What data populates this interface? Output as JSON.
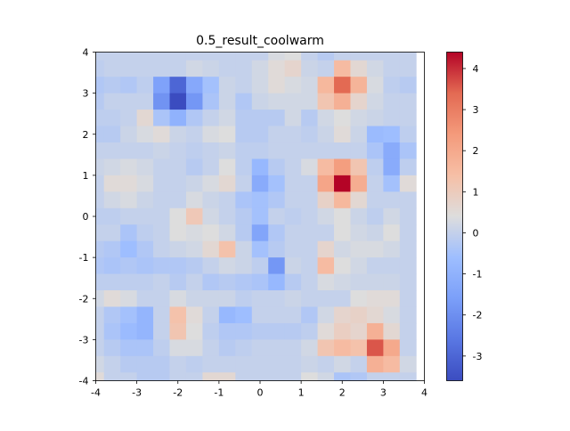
{
  "chart_data": {
    "type": "heatmap",
    "title": "0.5_result_coolwarm",
    "xlabel": "",
    "ylabel": "",
    "colormap": "coolwarm",
    "xlim": [
      -4,
      4
    ],
    "ylim": [
      -4,
      4
    ],
    "x_ticks": [
      "-4",
      "-3",
      "-2",
      "-1",
      "0",
      "1",
      "2",
      "3",
      "4"
    ],
    "y_ticks": [
      "4",
      "3",
      "2",
      "1",
      "0",
      "-1",
      "-2",
      "-3",
      "-4"
    ],
    "colorbar_range": [
      -3.6,
      4.4
    ],
    "colorbar_ticks": [
      "4",
      "3",
      "2",
      "1",
      "0",
      "-1",
      "-2",
      "-3"
    ],
    "cell_size": 0.4,
    "grid": false,
    "values": [
      [
        0,
        0,
        0,
        0,
        0,
        0,
        0,
        0,
        0,
        0,
        0,
        0.3,
        0.4,
        0,
        -0.2,
        0,
        0,
        0,
        0,
        0
      ],
      [
        -0.1,
        0,
        0,
        0,
        0,
        0,
        0.2,
        0.1,
        0,
        0,
        0.2,
        0.5,
        0.7,
        0.1,
        0,
        1.5,
        0.6,
        0.2,
        0,
        0
      ],
      [
        -0.3,
        -0.2,
        -0.3,
        -0.1,
        -1.5,
        -3.0,
        -1.3,
        -0.5,
        0.1,
        0,
        0.2,
        0.5,
        0.3,
        0.2,
        1.6,
        3.4,
        1.7,
        0.3,
        -0.1,
        -0.2
      ],
      [
        -0.2,
        0,
        0,
        0,
        -1.9,
        -3.6,
        -1.8,
        -0.4,
        0.1,
        -0.3,
        0.1,
        0.2,
        0.2,
        0.2,
        1.2,
        1.8,
        0.7,
        0.2,
        0,
        0
      ],
      [
        -0.1,
        -0.1,
        0,
        0.6,
        -0.4,
        -1.0,
        -0.3,
        0,
        0.2,
        -0.2,
        -0.2,
        -0.2,
        0.2,
        -0.2,
        0.2,
        0.4,
        0.2,
        0.1,
        0,
        0
      ],
      [
        -0.2,
        -0.2,
        0.1,
        0.3,
        0.5,
        0.1,
        0,
        0.3,
        0.4,
        -0.2,
        -0.2,
        0,
        0,
        -0.1,
        0.1,
        0.5,
        0.1,
        -0.7,
        -0.6,
        -0.1
      ],
      [
        0,
        0,
        0,
        0,
        0.1,
        0,
        -0.1,
        0,
        0.1,
        -0.1,
        -0.1,
        0,
        0,
        0,
        0,
        0,
        0,
        -0.4,
        -1.2,
        -0.4
      ],
      [
        0.1,
        0.2,
        0.3,
        0.2,
        0,
        0,
        -0.2,
        0,
        0.4,
        -0.1,
        -0.8,
        -0.2,
        0,
        0.3,
        1.5,
        2.3,
        1.2,
        -0.1,
        -1.2,
        -0.1
      ],
      [
        0,
        0.5,
        0.5,
        0.3,
        0,
        0,
        0.1,
        0.3,
        0.6,
        0,
        -1.2,
        -0.5,
        0,
        0,
        2.1,
        4.4,
        1.9,
        0,
        -0.5,
        0.5
      ],
      [
        0,
        0.2,
        0.3,
        0.1,
        0,
        0,
        0.3,
        0.1,
        0,
        -0.4,
        -0.5,
        -0.3,
        0,
        0,
        0.8,
        1.6,
        0.6,
        0,
        0,
        0
      ],
      [
        -0.1,
        -0.1,
        0,
        0,
        0,
        0.4,
        1.1,
        0.2,
        0,
        -0.2,
        -0.5,
        0,
        -0.1,
        0,
        0.2,
        0.4,
        0.1,
        -0.1,
        0.2,
        0
      ],
      [
        0,
        0,
        -0.4,
        -0.1,
        0,
        0.4,
        0.3,
        0.4,
        0.2,
        -0.2,
        -1.4,
        -0.3,
        0,
        0,
        0,
        0.4,
        0.2,
        0.1,
        0.4,
        0
      ],
      [
        -0.2,
        -0.3,
        -0.6,
        -0.3,
        0,
        0.1,
        0.2,
        0.6,
        1.3,
        0.1,
        -0.5,
        -0.2,
        0,
        0,
        0.7,
        0.2,
        0.3,
        0.3,
        0.2,
        0
      ],
      [
        -0.3,
        -0.4,
        -0.3,
        -0.4,
        -0.3,
        -0.3,
        -0.2,
        0,
        0.2,
        0.1,
        -0.1,
        -1.8,
        0.1,
        0,
        1.5,
        0.4,
        0.2,
        0,
        0,
        0
      ],
      [
        -0.1,
        -0.1,
        -0.1,
        -0.1,
        0,
        -0.2,
        0,
        -0.3,
        -0.2,
        -0.3,
        -0.4,
        -0.8,
        -0.2,
        0,
        0.3,
        0.2,
        0.1,
        0.1,
        0.1,
        0
      ],
      [
        0.2,
        0.5,
        0.3,
        0,
        0,
        0.3,
        0.1,
        0.1,
        0.1,
        -0.1,
        0,
        0,
        0.1,
        0,
        0,
        0,
        0.4,
        0.5,
        0.5,
        0
      ],
      [
        0,
        -0.3,
        -0.5,
        -0.9,
        0,
        1.3,
        0.5,
        0,
        -0.8,
        -0.6,
        0,
        0,
        0,
        -0.3,
        0.2,
        0.7,
        0.8,
        0.6,
        0.3,
        0
      ],
      [
        0,
        -0.4,
        -0.7,
        -0.9,
        0,
        1.2,
        0.4,
        -0.1,
        -0.3,
        -0.3,
        -0.2,
        -0.2,
        -0.2,
        -0.1,
        0.5,
        0.9,
        0.7,
        1.8,
        0.6,
        0
      ],
      [
        0,
        -0.2,
        -0.4,
        -0.4,
        -0.1,
        0.3,
        0.3,
        0,
        -0.2,
        -0.1,
        0,
        0,
        0,
        0.2,
        1.2,
        1.5,
        1.3,
        3.6,
        2.0,
        0
      ],
      [
        0.2,
        0,
        -0.2,
        -0.2,
        -0.2,
        0,
        -0.1,
        0,
        0,
        0,
        0,
        0,
        0,
        0.1,
        0,
        0.2,
        0,
        1.8,
        1.5,
        0.2
      ],
      [
        0.5,
        0,
        0,
        -0.2,
        -0.2,
        0,
        0,
        0.6,
        0.6,
        0,
        0,
        0,
        0,
        0.4,
        0.2,
        -0.4,
        -0.3,
        0,
        0,
        0
      ]
    ]
  }
}
